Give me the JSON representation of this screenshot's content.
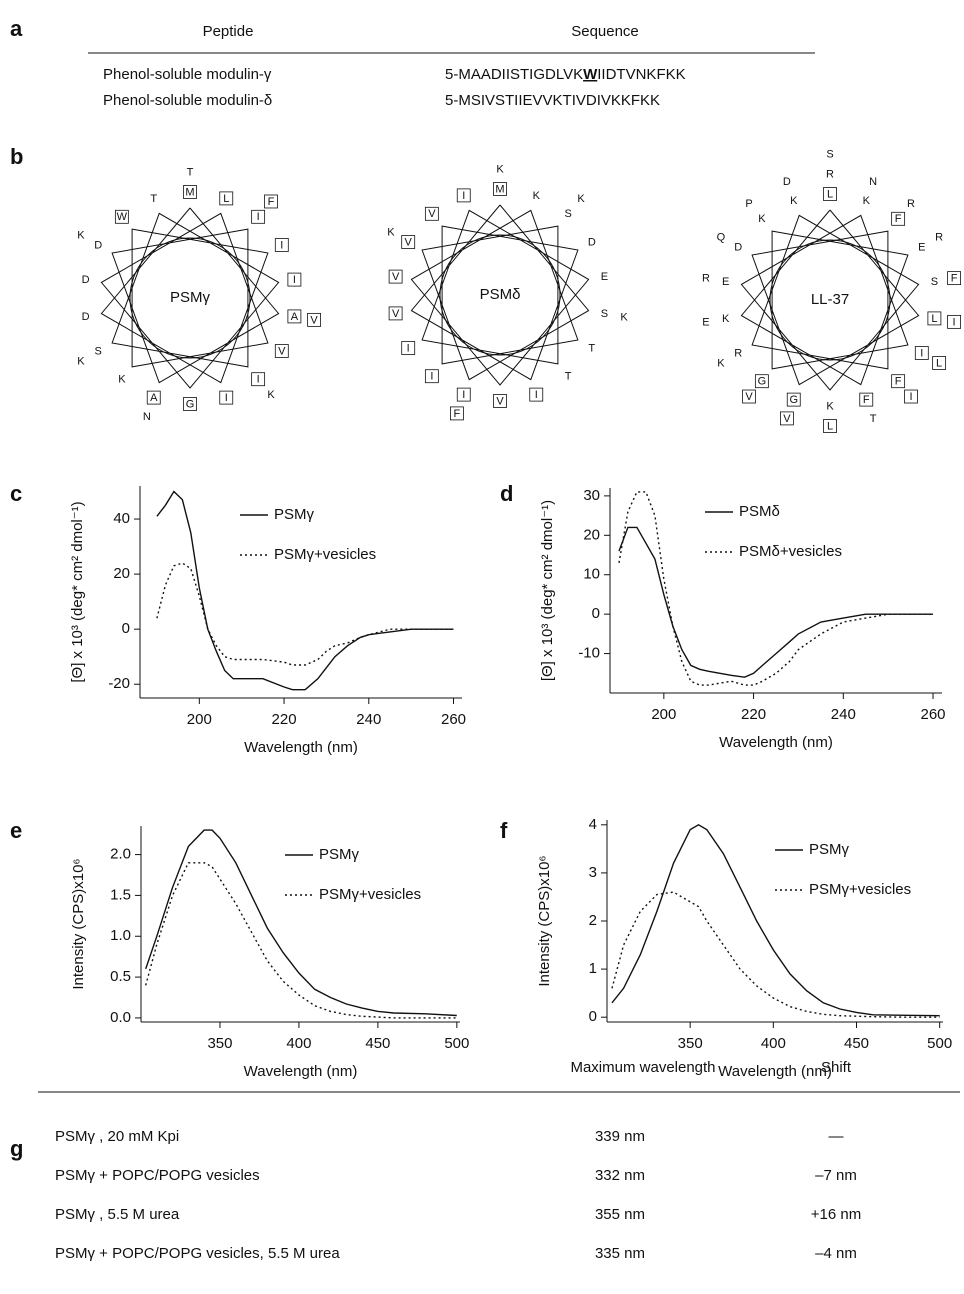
{
  "sequence_table": {
    "panel_label": "a",
    "headers": [
      "Peptide",
      "Sequence"
    ],
    "rows": [
      {
        "peptide": "Phenol-soluble modulin-γ",
        "seq_pre": "5-MAADIISTIGDLVK",
        "seq_highlight": "W",
        "seq_post": "IIDTVNKFKK"
      },
      {
        "peptide": "Phenol-soluble modulin-δ",
        "seq_pre": "5-MSIVSTIIEVVKTIVDIVKKFKK",
        "seq_highlight": "",
        "seq_post": ""
      }
    ]
  },
  "helical_wheels": {
    "panel_label": "b",
    "wheels": [
      {
        "name": "PSMγ",
        "residues": [
          "M",
          "A",
          "A",
          "D",
          "I",
          "I",
          "S",
          "T",
          "I",
          "G",
          "D",
          "L",
          "V",
          "K",
          "W",
          "I",
          "I",
          "D",
          "T",
          "V",
          "N",
          "K",
          "F",
          "K",
          "K"
        ]
      },
      {
        "name": "PSMδ",
        "residues": [
          "M",
          "S",
          "I",
          "V",
          "S",
          "T",
          "I",
          "I",
          "E",
          "V",
          "V",
          "K",
          "T",
          "I",
          "V",
          "D",
          "I",
          "V",
          "K",
          "K",
          "F",
          "K",
          "K"
        ]
      },
      {
        "name": "LL-37",
        "residues": [
          "L",
          "L",
          "G",
          "D",
          "F",
          "F",
          "R",
          "K",
          "S",
          "K",
          "E",
          "K",
          "I",
          "G",
          "K",
          "E",
          "F",
          "K",
          "R",
          "I",
          "V",
          "Q",
          "R",
          "I",
          "K",
          "D",
          "F",
          "L",
          "R",
          "N",
          "L",
          "V",
          "P",
          "R",
          "T",
          "E",
          "S"
        ]
      }
    ],
    "boxed_residues": [
      "A",
      "F",
      "G",
      "I",
      "L",
      "M",
      "V",
      "W"
    ]
  },
  "chart_data": [
    {
      "type": "line",
      "panel_label": "c",
      "xlabel": "Wavelength (nm)",
      "ylabel": "[Θ] x 10³ (deg* cm² dmol⁻¹)",
      "x": [
        190,
        192,
        194,
        196,
        198,
        200,
        202,
        204,
        206,
        208,
        210,
        215,
        220,
        222,
        225,
        228,
        230,
        232,
        235,
        238,
        240,
        245,
        250,
        255,
        260
      ],
      "series": [
        {
          "name": "PSMγ",
          "color": "#111111",
          "dashed": false,
          "values": [
            41,
            45,
            50,
            47,
            35,
            15,
            0,
            -8,
            -15,
            -18,
            -18,
            -18,
            -21,
            -22,
            -22,
            -18,
            -14,
            -10,
            -6,
            -3,
            -2,
            -1,
            0,
            0,
            0
          ]
        },
        {
          "name": "PSMγ+vesicles",
          "color": "#111111",
          "dashed": true,
          "values": [
            4,
            16,
            23,
            24,
            22,
            12,
            0,
            -6,
            -10,
            -11,
            -11,
            -11,
            -12,
            -13,
            -13,
            -11,
            -8,
            -6,
            -5,
            -3,
            -2,
            0,
            0,
            0,
            0
          ]
        }
      ],
      "xlim": [
        186,
        262
      ],
      "ylim": [
        -25,
        52
      ],
      "xticks": [
        200,
        220,
        240,
        260
      ],
      "yticks": [
        -20,
        0,
        20,
        40
      ]
    },
    {
      "type": "line",
      "panel_label": "d",
      "xlabel": "Wavelength (nm)",
      "ylabel": "[Θ] x 10³ (deg* cm² dmol⁻¹)",
      "x": [
        190,
        192,
        194,
        196,
        198,
        200,
        202,
        204,
        206,
        208,
        210,
        215,
        218,
        220,
        222,
        225,
        228,
        230,
        235,
        240,
        245,
        250,
        255,
        260
      ],
      "series": [
        {
          "name": "PSMδ",
          "color": "#111111",
          "dashed": false,
          "values": [
            16,
            22,
            22,
            18,
            14,
            5,
            -3,
            -9,
            -13,
            -14,
            -14.5,
            -15.5,
            -16,
            -15,
            -13,
            -10,
            -7,
            -5,
            -2,
            -1,
            0,
            0,
            0,
            0
          ]
        },
        {
          "name": "PSMδ+vesicles",
          "color": "#111111",
          "dashed": true,
          "values": [
            13,
            26,
            31,
            31,
            25,
            9,
            -3,
            -12,
            -17,
            -18,
            -18,
            -17,
            -18,
            -18,
            -17,
            -15,
            -12,
            -9,
            -5,
            -2,
            -1,
            0,
            0,
            0
          ]
        }
      ],
      "xlim": [
        188,
        262
      ],
      "ylim": [
        -20,
        32
      ],
      "xticks": [
        200,
        220,
        240,
        260
      ],
      "yticks": [
        -10,
        0,
        10,
        20,
        30
      ]
    },
    {
      "type": "line",
      "panel_label": "e",
      "xlabel": "Wavelength (nm)",
      "ylabel": "Intensity (CPS)x10⁶",
      "x": [
        303,
        310,
        320,
        330,
        340,
        345,
        350,
        360,
        370,
        380,
        390,
        400,
        410,
        420,
        430,
        440,
        450,
        460,
        480,
        500
      ],
      "series": [
        {
          "name": "PSMγ",
          "color": "#111111",
          "dashed": false,
          "values": [
            0.6,
            1.0,
            1.6,
            2.1,
            2.3,
            2.3,
            2.2,
            1.9,
            1.5,
            1.1,
            0.8,
            0.55,
            0.35,
            0.25,
            0.17,
            0.12,
            0.08,
            0.06,
            0.05,
            0.03
          ]
        },
        {
          "name": "PSMγ+vesicles",
          "color": "#111111",
          "dashed": true,
          "values": [
            0.4,
            0.9,
            1.5,
            1.9,
            1.9,
            1.85,
            1.7,
            1.4,
            1.05,
            0.7,
            0.45,
            0.28,
            0.15,
            0.08,
            0.04,
            0.02,
            0.01,
            0,
            0,
            0
          ]
        }
      ],
      "xlim": [
        300,
        502
      ],
      "ylim": [
        -0.05,
        2.35
      ],
      "xticks": [
        350,
        400,
        450,
        500
      ],
      "yticks": [
        {
          "value": 0,
          "label": "0.0"
        },
        0.5,
        {
          "value": 1,
          "label": "1.0"
        },
        1.5,
        {
          "value": 2,
          "label": "2.0"
        }
      ]
    },
    {
      "type": "line",
      "panel_label": "f",
      "xlabel": "Wavelength (nm)",
      "ylabel": "Intensity (CPS)x10⁶",
      "x": [
        303,
        310,
        320,
        330,
        340,
        350,
        355,
        360,
        370,
        380,
        390,
        400,
        410,
        420,
        430,
        440,
        450,
        460,
        480,
        500
      ],
      "series": [
        {
          "name": "PSMγ",
          "color": "#111111",
          "dashed": false,
          "values": [
            0.3,
            0.6,
            1.3,
            2.2,
            3.2,
            3.9,
            4.0,
            3.9,
            3.4,
            2.7,
            2.0,
            1.4,
            0.9,
            0.55,
            0.3,
            0.17,
            0.1,
            0.05,
            0.04,
            0.03
          ]
        },
        {
          "name": "PSMγ+vesicles",
          "color": "#111111",
          "dashed": true,
          "values": [
            0.6,
            1.5,
            2.2,
            2.55,
            2.6,
            2.4,
            2.3,
            2.0,
            1.5,
            1.0,
            0.65,
            0.4,
            0.22,
            0.12,
            0.06,
            0.03,
            0.02,
            0.01,
            0,
            0
          ]
        }
      ],
      "xlim": [
        300,
        502
      ],
      "ylim": [
        -0.1,
        4.1
      ],
      "xticks": [
        350,
        400,
        450,
        500
      ],
      "yticks": [
        0,
        1,
        2,
        3,
        4
      ]
    }
  ],
  "max_wavelength_table": {
    "panel_label": "g",
    "headers": [
      "Maximum wavelength",
      "Shift"
    ],
    "rows": [
      [
        "PSMγ , 20 mM Kpi",
        "339 nm",
        "—"
      ],
      [
        "PSMγ  + POPC/POPG vesicles",
        "332 nm",
        "–7 nm"
      ],
      [
        "PSMγ , 5.5 M urea",
        "355 nm",
        "+16 nm"
      ],
      [
        "PSMγ  + POPC/POPG vesicles, 5.5 M urea",
        "335 nm",
        "–4 nm"
      ]
    ]
  }
}
